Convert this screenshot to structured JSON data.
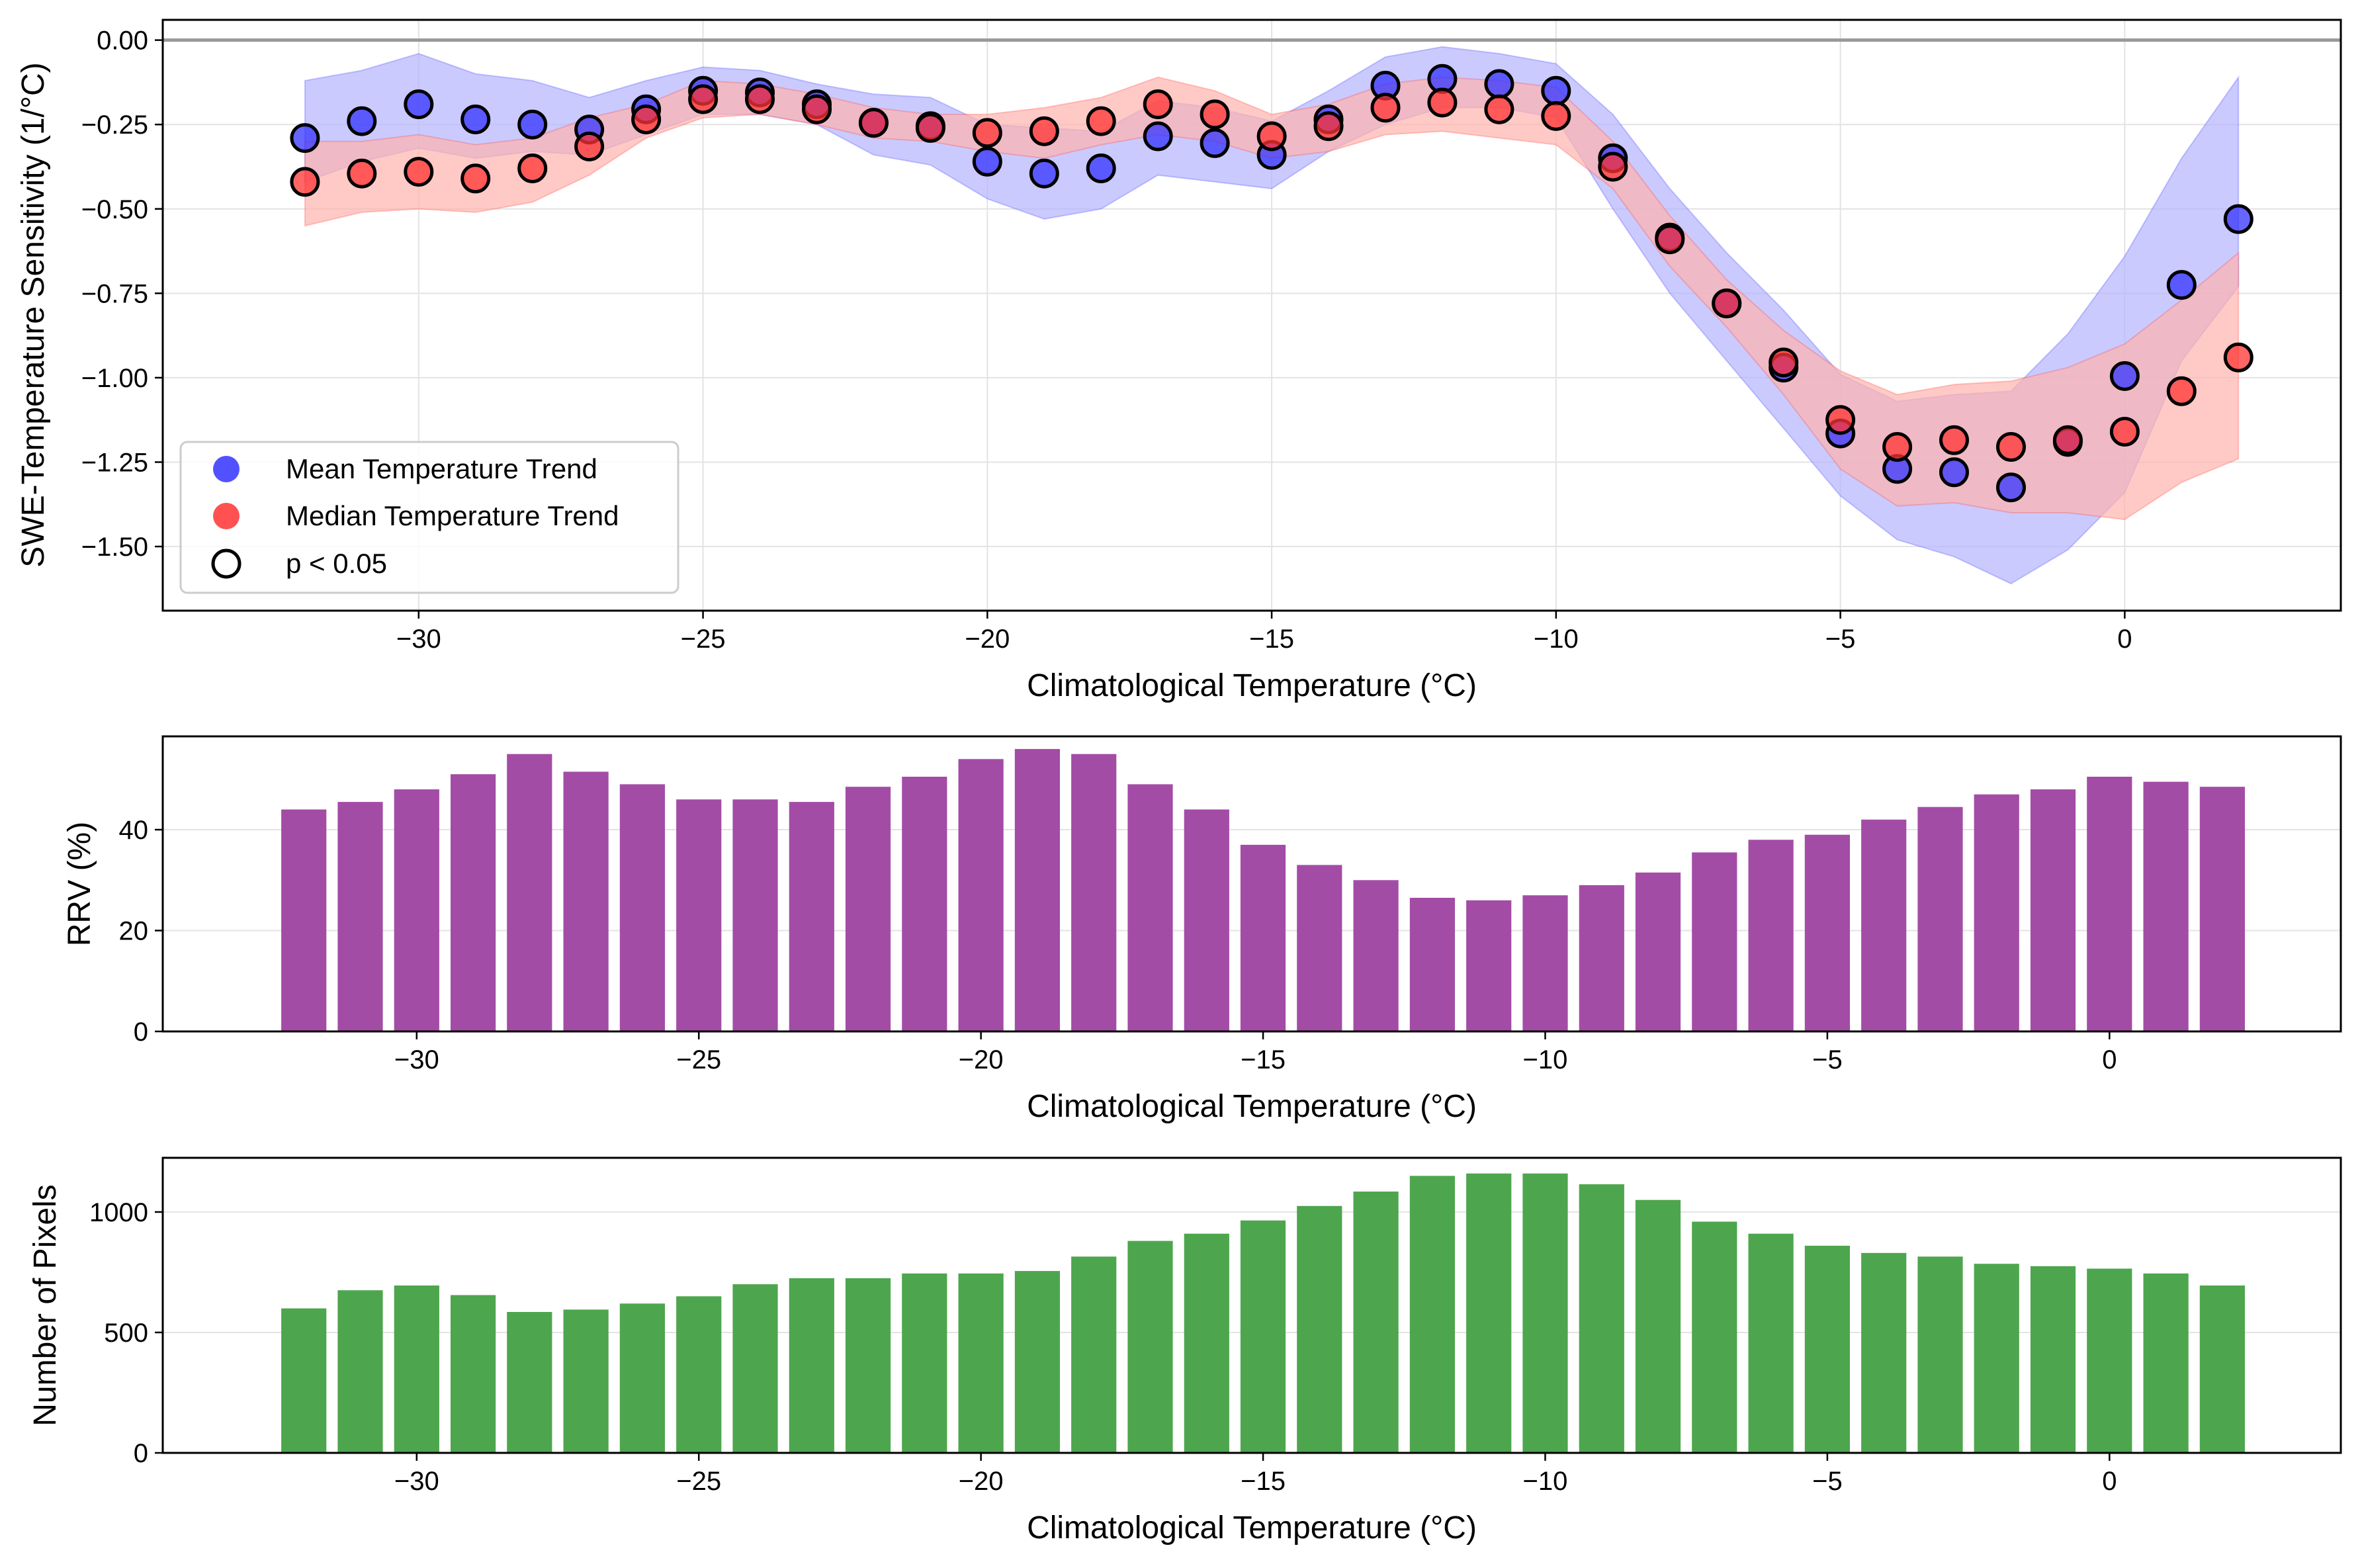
{
  "chart_data": [
    {
      "type": "scatter",
      "xlabel": "Climatological Temperature (°C)",
      "ylabel": "SWE-Temperature Sensitivity (1/°C)",
      "xlim": [
        -34.5,
        3.8
      ],
      "ylim": [
        -1.69,
        0.06
      ],
      "xticks": [
        -30,
        -25,
        -20,
        -15,
        -10,
        -5,
        0
      ],
      "yticks": [
        0.0,
        -0.25,
        -0.5,
        -0.75,
        -1.0,
        -1.25,
        -1.5
      ],
      "xtick_labels": [
        "−30",
        "−25",
        "−20",
        "−15",
        "−10",
        "−5",
        "0"
      ],
      "ytick_labels": [
        "0.00",
        "−0.25",
        "−0.50",
        "−0.75",
        "−1.00",
        "−1.25",
        "−1.50"
      ],
      "grid": true,
      "reference_line": 0,
      "legend_position": "lower-left",
      "colors": {
        "mean": "#3333ff",
        "median": "#ff3333",
        "mean_band": "#b3b3ff",
        "median_band": "#ffb3ad",
        "zero_line": "#999999"
      },
      "x": [
        -32,
        -31,
        -30,
        -29,
        -28,
        -27,
        -26,
        -25,
        -24,
        -23,
        -22,
        -21,
        -20,
        -19,
        -18,
        -17,
        -16,
        -15,
        -14,
        -13,
        -12,
        -11,
        -10,
        -9,
        -8,
        -7,
        -6,
        -5,
        -4,
        -3,
        -2,
        -1,
        0,
        1,
        2
      ],
      "series": [
        {
          "name": "Mean Temperature Trend",
          "values": [
            -0.29,
            -0.24,
            -0.19,
            -0.235,
            -0.25,
            -0.265,
            -0.205,
            -0.15,
            -0.155,
            -0.19,
            -0.245,
            -0.255,
            -0.36,
            -0.395,
            -0.38,
            -0.285,
            -0.305,
            -0.34,
            -0.235,
            -0.135,
            -0.115,
            -0.13,
            -0.15,
            -0.35,
            -0.585,
            -0.78,
            -0.97,
            -1.165,
            -1.27,
            -1.28,
            -1.325,
            -1.19,
            -0.995,
            -0.725,
            -0.53
          ],
          "lower": [
            -0.42,
            -0.36,
            -0.32,
            -0.35,
            -0.33,
            -0.34,
            -0.28,
            -0.22,
            -0.22,
            -0.25,
            -0.34,
            -0.37,
            -0.47,
            -0.53,
            -0.5,
            -0.4,
            -0.42,
            -0.44,
            -0.33,
            -0.25,
            -0.2,
            -0.2,
            -0.23,
            -0.5,
            -0.75,
            -0.95,
            -1.15,
            -1.35,
            -1.48,
            -1.53,
            -1.61,
            -1.51,
            -1.34,
            -0.95,
            -0.73
          ],
          "upper": [
            -0.12,
            -0.09,
            -0.04,
            -0.1,
            -0.12,
            -0.17,
            -0.12,
            -0.08,
            -0.09,
            -0.13,
            -0.16,
            -0.17,
            -0.25,
            -0.26,
            -0.27,
            -0.18,
            -0.2,
            -0.24,
            -0.15,
            -0.05,
            -0.02,
            -0.04,
            -0.07,
            -0.22,
            -0.44,
            -0.63,
            -0.8,
            -0.99,
            -1.07,
            -1.05,
            -1.04,
            -0.87,
            -0.64,
            -0.35,
            -0.11
          ]
        },
        {
          "name": "Median Temperature Trend",
          "values": [
            -0.42,
            -0.395,
            -0.39,
            -0.41,
            -0.38,
            -0.315,
            -0.235,
            -0.175,
            -0.175,
            -0.205,
            -0.245,
            -0.26,
            -0.275,
            -0.27,
            -0.24,
            -0.19,
            -0.22,
            -0.285,
            -0.255,
            -0.2,
            -0.185,
            -0.205,
            -0.225,
            -0.375,
            -0.59,
            -0.78,
            -0.955,
            -1.125,
            -1.205,
            -1.185,
            -1.205,
            -1.185,
            -1.16,
            -1.04,
            -0.94
          ],
          "lower": [
            -0.55,
            -0.51,
            -0.5,
            -0.51,
            -0.48,
            -0.4,
            -0.29,
            -0.23,
            -0.22,
            -0.25,
            -0.29,
            -0.3,
            -0.33,
            -0.35,
            -0.31,
            -0.28,
            -0.3,
            -0.35,
            -0.33,
            -0.28,
            -0.27,
            -0.29,
            -0.31,
            -0.44,
            -0.67,
            -0.85,
            -1.05,
            -1.27,
            -1.38,
            -1.37,
            -1.4,
            -1.4,
            -1.42,
            -1.31,
            -1.24
          ],
          "upper": [
            -0.3,
            -0.3,
            -0.28,
            -0.31,
            -0.29,
            -0.23,
            -0.19,
            -0.12,
            -0.13,
            -0.16,
            -0.2,
            -0.22,
            -0.22,
            -0.2,
            -0.17,
            -0.11,
            -0.15,
            -0.22,
            -0.19,
            -0.13,
            -0.11,
            -0.12,
            -0.14,
            -0.3,
            -0.52,
            -0.71,
            -0.86,
            -0.98,
            -1.05,
            -1.02,
            -1.01,
            -0.97,
            -0.9,
            -0.77,
            -0.63
          ]
        }
      ],
      "legend": [
        "Mean Temperature Trend",
        "Median Temperature Trend",
        "p < 0.05"
      ]
    },
    {
      "type": "bar",
      "xlabel": "Climatological Temperature (°C)",
      "ylabel": "RRV (%)",
      "xlim": [
        -34.5,
        4.1
      ],
      "ylim": [
        0,
        58.5
      ],
      "xticks": [
        -30,
        -25,
        -20,
        -15,
        -10,
        -5,
        0
      ],
      "yticks": [
        0,
        20,
        40
      ],
      "xtick_labels": [
        "−30",
        "−25",
        "−20",
        "−15",
        "−10",
        "−5",
        "0"
      ],
      "ytick_labels": [
        "0",
        "20",
        "40"
      ],
      "color": "#a34ca6",
      "x": [
        -32,
        -31,
        -30,
        -29,
        -28,
        -27,
        -26,
        -25,
        -24,
        -23,
        -22,
        -21,
        -20,
        -19,
        -18,
        -17,
        -16,
        -15,
        -14,
        -13,
        -12,
        -11,
        -10,
        -9,
        -8,
        -7,
        -6,
        -5,
        -4,
        -3,
        -2,
        -1,
        0,
        1,
        2
      ],
      "values": [
        44,
        45.5,
        48,
        51,
        55,
        51.5,
        49,
        46,
        46,
        45.5,
        48.5,
        50.5,
        54,
        56,
        55,
        49,
        44,
        37,
        33,
        30,
        26.5,
        26,
        27,
        29,
        31.5,
        35.5,
        38,
        39,
        42,
        44.5,
        47,
        48,
        50.5,
        49.5,
        48.5
      ]
    },
    {
      "type": "bar",
      "xlabel": "Climatological Temperature (°C)",
      "ylabel": "Number of Pixels",
      "xlim": [
        -34.5,
        4.1
      ],
      "ylim": [
        0,
        1225
      ],
      "xticks": [
        -30,
        -25,
        -20,
        -15,
        -10,
        -5,
        0
      ],
      "yticks": [
        0,
        500,
        1000
      ],
      "xtick_labels": [
        "−30",
        "−25",
        "−20",
        "−15",
        "−10",
        "−5",
        "0"
      ],
      "ytick_labels": [
        "0",
        "500",
        "1000"
      ],
      "color": "#4da64d",
      "x": [
        -32,
        -31,
        -30,
        -29,
        -28,
        -27,
        -26,
        -25,
        -24,
        -23,
        -22,
        -21,
        -20,
        -19,
        -18,
        -17,
        -16,
        -15,
        -14,
        -13,
        -12,
        -11,
        -10,
        -9,
        -8,
        -7,
        -6,
        -5,
        -4,
        -3,
        -2,
        -1,
        0,
        1,
        2
      ],
      "values": [
        600,
        675,
        695,
        655,
        585,
        595,
        620,
        650,
        700,
        725,
        725,
        745,
        745,
        755,
        815,
        880,
        910,
        965,
        1025,
        1085,
        1150,
        1160,
        1160,
        1115,
        1050,
        960,
        910,
        860,
        830,
        815,
        785,
        775,
        765,
        745,
        695
      ]
    }
  ]
}
